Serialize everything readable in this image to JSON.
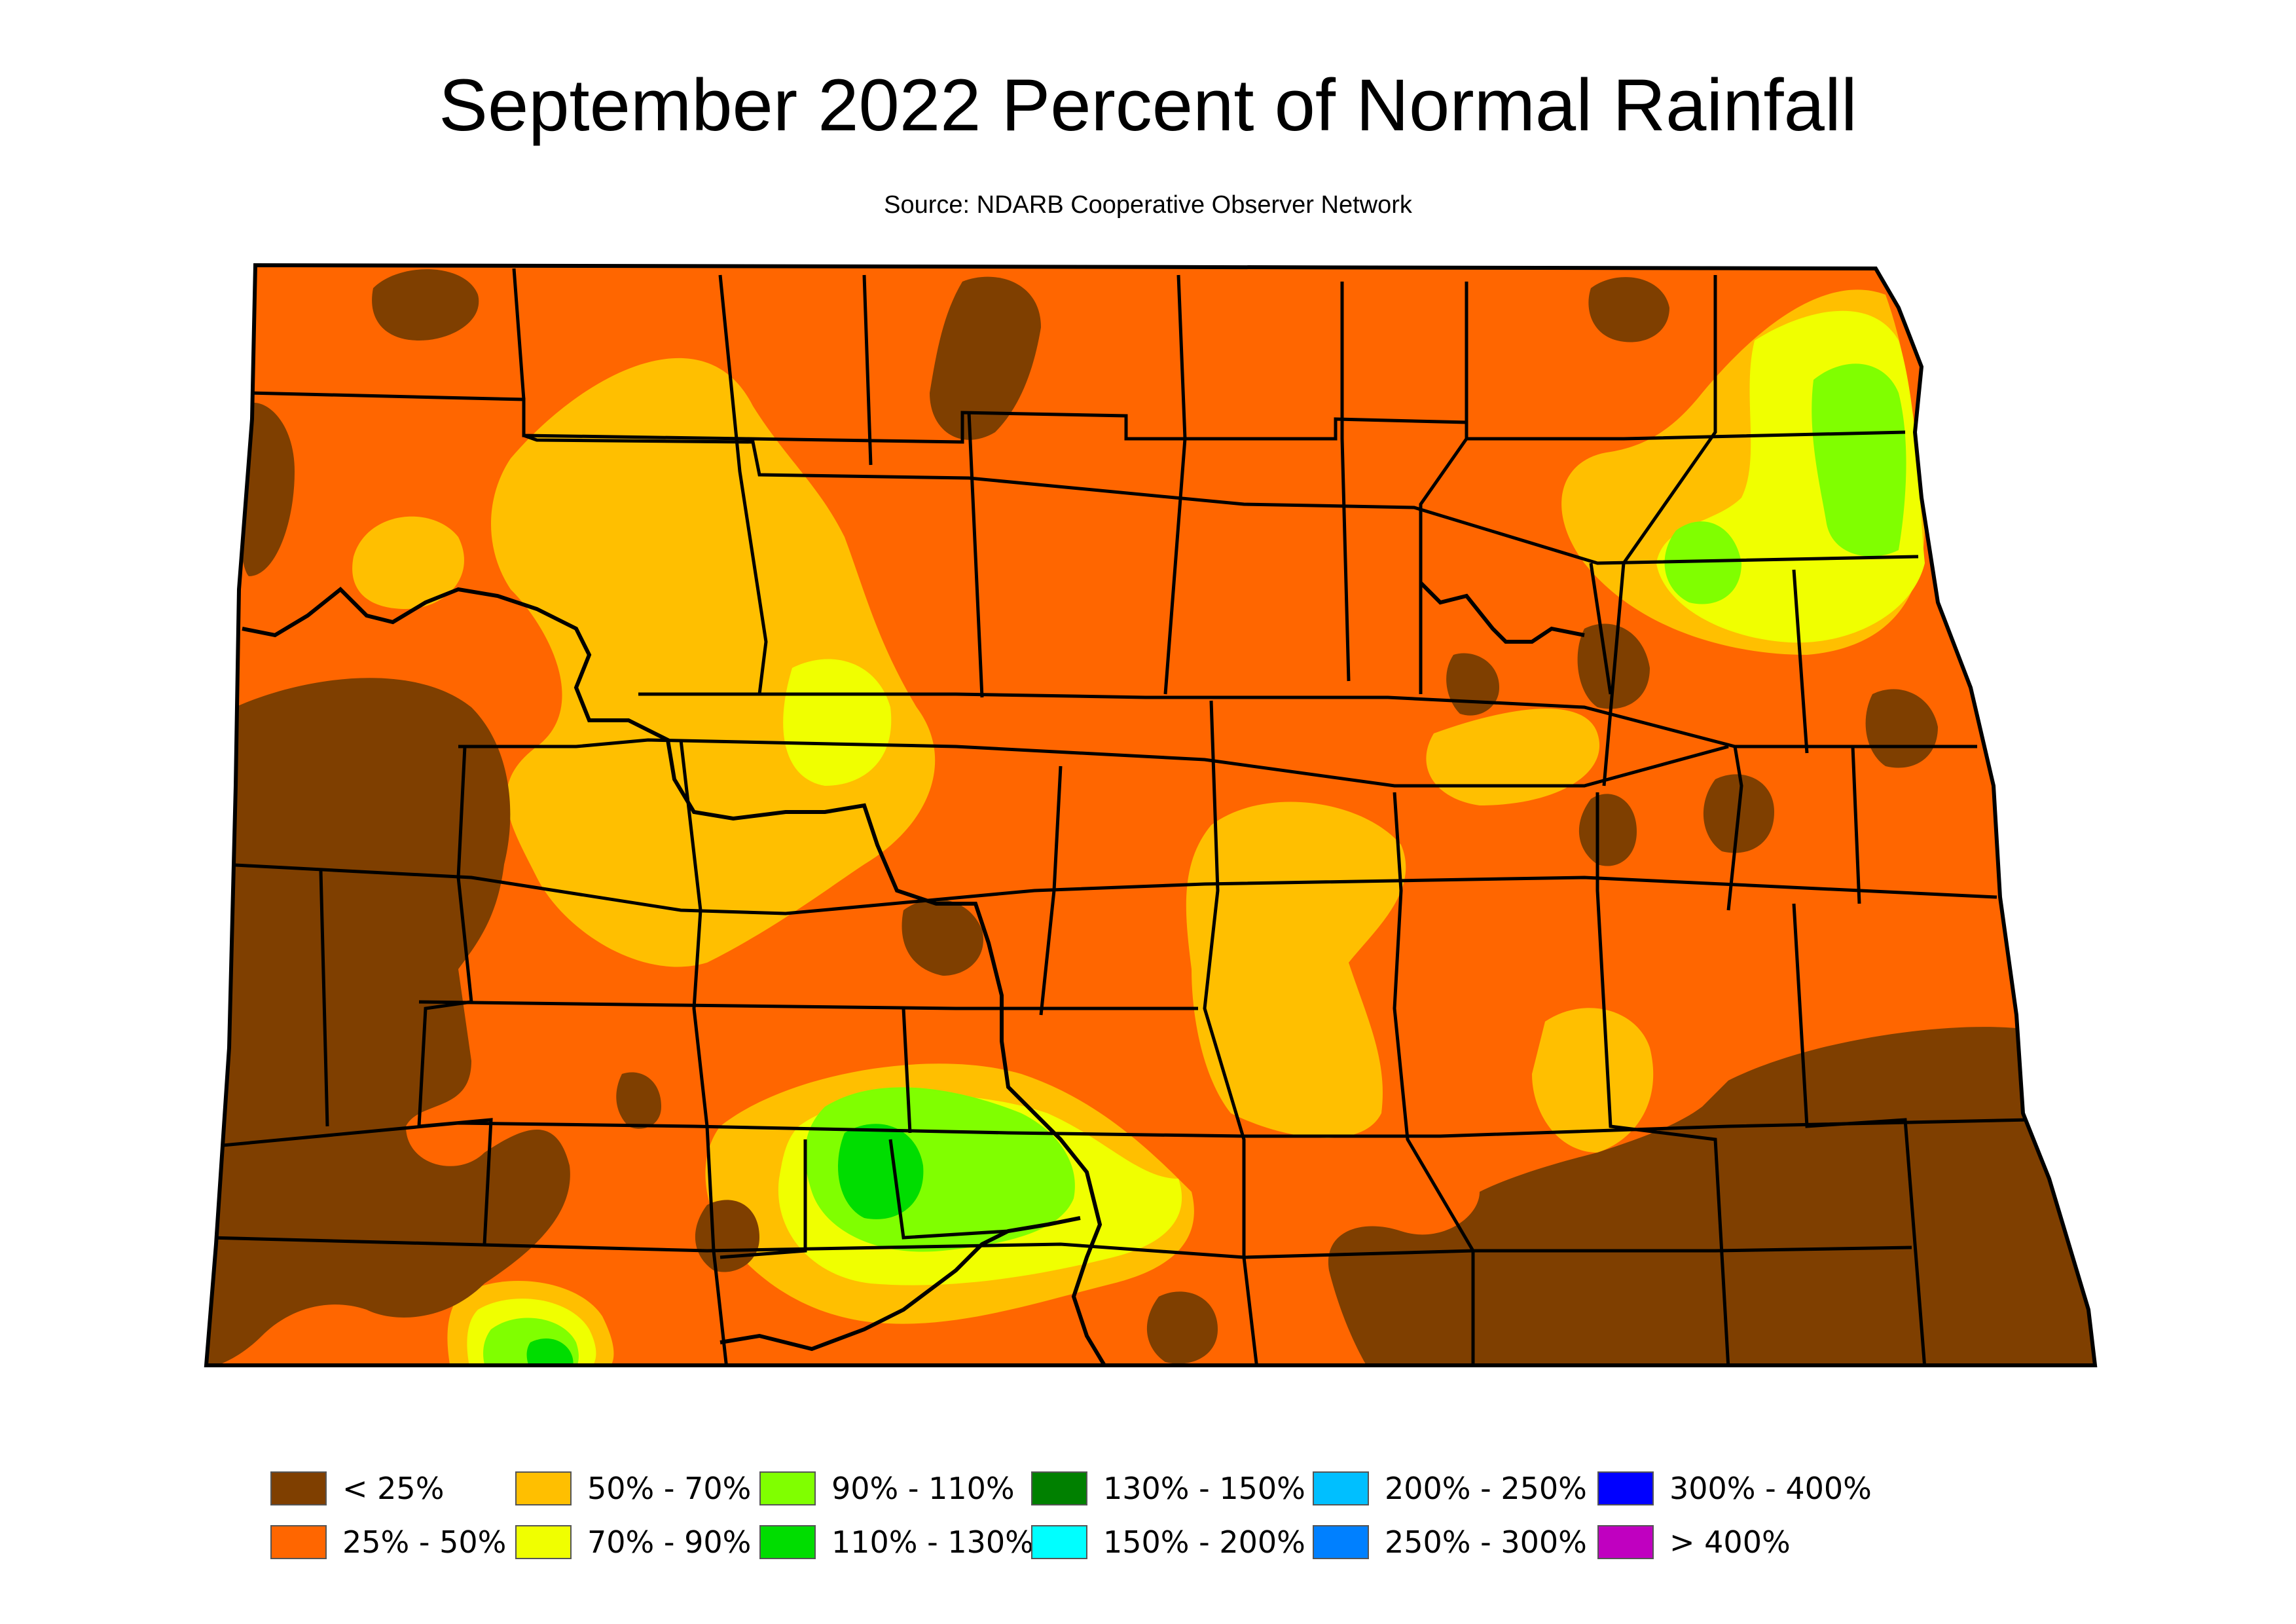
{
  "title": "September 2022 Percent of Normal Rainfall",
  "source": "Source: NDARB Cooperative Observer Network",
  "legend": [
    {
      "label": "< 25%",
      "color": "#7f3f00"
    },
    {
      "label": "25% - 50%",
      "color": "#ff6600"
    },
    {
      "label": "50% - 70%",
      "color": "#ffbf00"
    },
    {
      "label": "70% - 90%",
      "color": "#f0ff00"
    },
    {
      "label": "90% - 110%",
      "color": "#80ff00"
    },
    {
      "label": "110% - 130%",
      "color": "#00dd00"
    },
    {
      "label": "130% - 150%",
      "color": "#008000"
    },
    {
      "label": "150% - 200%",
      "color": "#00ffff"
    },
    {
      "label": "200% - 250%",
      "color": "#00bfff"
    },
    {
      "label": "250% - 300%",
      "color": "#0080ff"
    },
    {
      "label": "300% - 400%",
      "color": "#0000ff"
    },
    {
      "label": "> 400%",
      "color": "#c000c0"
    }
  ]
}
